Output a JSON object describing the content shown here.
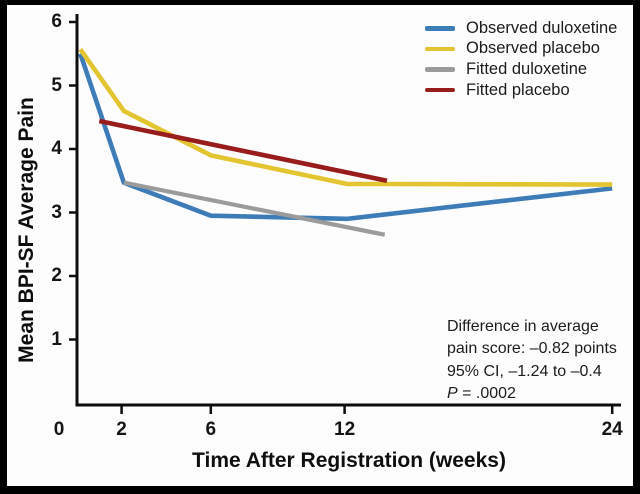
{
  "chart_data": {
    "type": "line",
    "title": "",
    "xlabel": "Time After Registration (weeks)",
    "ylabel": "Mean BPI-SF Average Pain",
    "xlim": [
      0,
      24.5
    ],
    "ylim": [
      0,
      6
    ],
    "xticks": [
      0,
      2,
      6,
      12,
      24
    ],
    "yticks": [
      1,
      2,
      3,
      4,
      5,
      6
    ],
    "grid": false,
    "legend_position": "top-right",
    "series": [
      {
        "name": "Observed duloxetine",
        "color": "#3E7CB8",
        "width": 4.6,
        "points": [
          [
            0.15,
            5.5
          ],
          [
            2.1,
            3.47
          ],
          [
            6,
            2.95
          ],
          [
            12.1,
            2.9
          ],
          [
            24,
            3.38
          ]
        ]
      },
      {
        "name": "Observed placebo",
        "color": "#E3C431",
        "width": 4.6,
        "points": [
          [
            0.15,
            5.57
          ],
          [
            2.1,
            4.6
          ],
          [
            6,
            3.9
          ],
          [
            12.1,
            3.45
          ],
          [
            24,
            3.44
          ]
        ]
      },
      {
        "name": "Fitted duloxetine",
        "color": "#9B9B9B",
        "width": 4.2,
        "points": [
          [
            2.1,
            3.47
          ],
          [
            13.8,
            2.65
          ]
        ]
      },
      {
        "name": "Fitted placebo",
        "color": "#991C1C",
        "width": 4.6,
        "points": [
          [
            1.0,
            4.44
          ],
          [
            13.9,
            3.5
          ]
        ]
      }
    ],
    "annotation": {
      "lines": [
        "Difference in average",
        "pain score: –0.82 points",
        "95% CI, –1.24 to –0.4"
      ],
      "p_label": "P",
      "p_rest": " = .0002"
    }
  },
  "axis_color": "#0d0d0d"
}
